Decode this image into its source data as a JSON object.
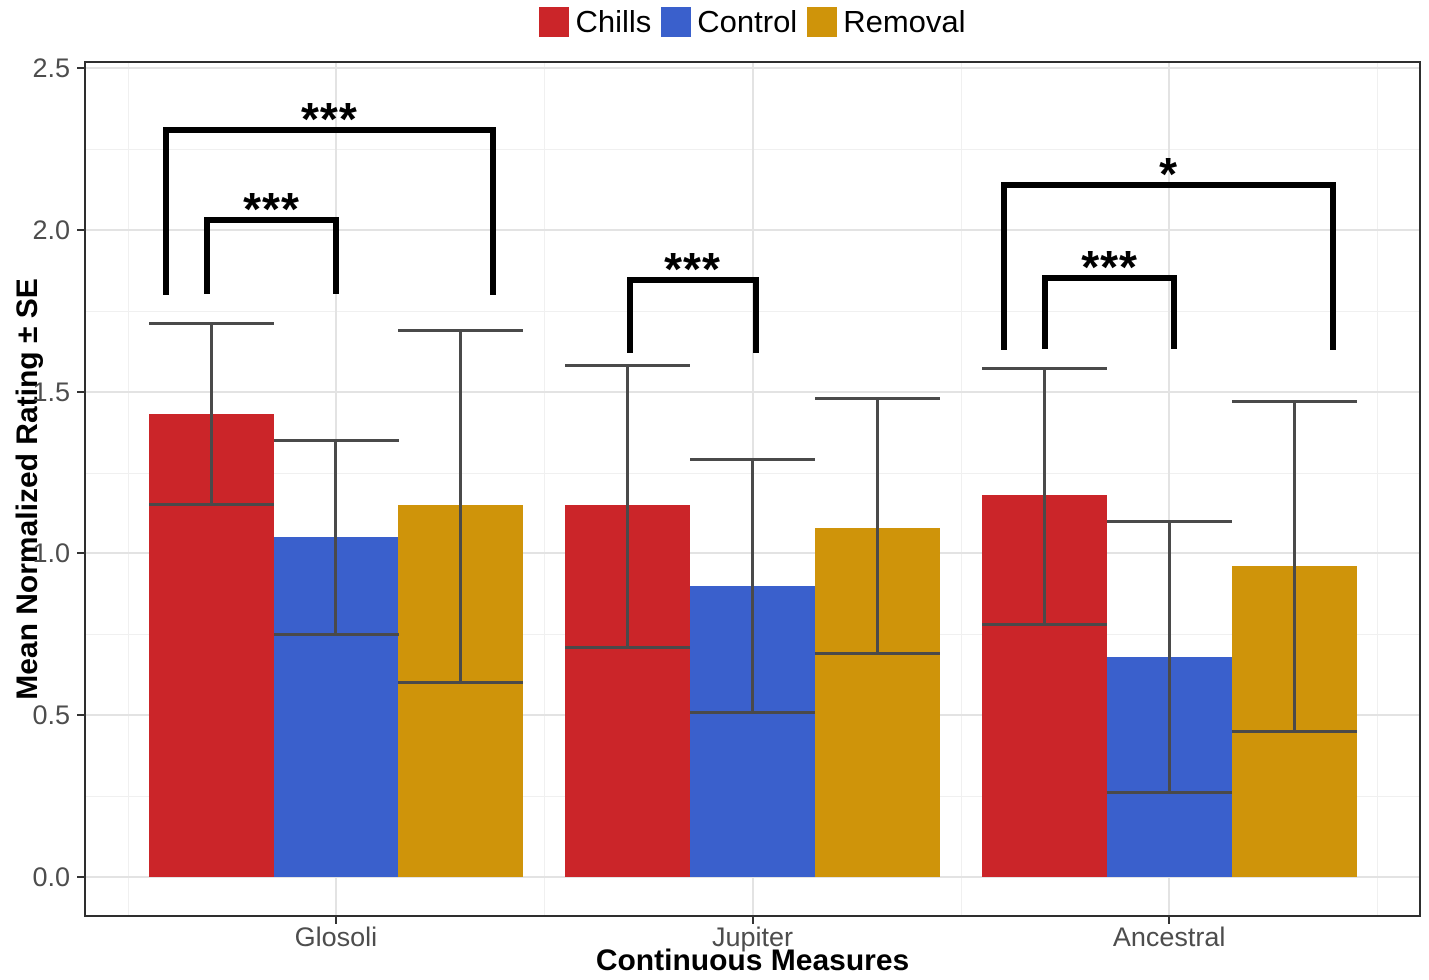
{
  "chart_data": {
    "type": "bar",
    "title": "",
    "xlabel": "Continuous Measures",
    "ylabel": "Mean Normalized Rating ± SE",
    "categories": [
      "Glosoli",
      "Jupiter",
      "Ancestral"
    ],
    "series": [
      {
        "name": "Chills",
        "color": "#CB2529",
        "values": [
          1.43,
          1.15,
          1.18
        ],
        "se_lower": [
          1.15,
          0.71,
          0.78
        ],
        "se_upper": [
          1.71,
          1.58,
          1.57
        ]
      },
      {
        "name": "Control",
        "color": "#3A60CC",
        "values": [
          1.05,
          0.9,
          0.68
        ],
        "se_lower": [
          0.75,
          0.51,
          0.26
        ],
        "se_upper": [
          1.35,
          1.29,
          1.1
        ]
      },
      {
        "name": "Removal",
        "color": "#CF940A",
        "values": [
          1.15,
          1.08,
          0.96
        ],
        "se_lower": [
          0.6,
          0.69,
          0.45
        ],
        "se_upper": [
          1.69,
          1.48,
          1.47
        ]
      }
    ],
    "ylim": [
      0,
      2.5
    ],
    "yticks": [
      0.0,
      0.5,
      1.0,
      1.5,
      2.0,
      2.5
    ],
    "ytick_labels": [
      "0.0",
      "0.5",
      "1.0",
      "1.5",
      "2.0",
      "2.5"
    ],
    "yminor": [
      0.25,
      0.75,
      1.25,
      1.75,
      2.25
    ],
    "grid": {
      "major": true,
      "minor": true
    },
    "legend_position": "top",
    "error_bar_color": "#4A4A4A",
    "gridline_major_color": "#E3E3E3",
    "gridline_minor_color": "#F0F0F0",
    "significance": [
      {
        "category": "Glosoli",
        "from": "Chills",
        "to": "Control",
        "label": "***",
        "top": 2.03,
        "legs_to": 1.8,
        "extend": [
          -4,
          0
        ]
      },
      {
        "category": "Glosoli",
        "from": "Chills",
        "to": "Removal",
        "label": "***",
        "top": 2.31,
        "legs_to": 1.8,
        "extend": [
          -45,
          32
        ]
      },
      {
        "category": "Jupiter",
        "from": "Chills",
        "to": "Control",
        "label": "***",
        "top": 1.845,
        "legs_to": 1.62,
        "extend": [
          2,
          3
        ]
      },
      {
        "category": "Ancestral",
        "from": "Chills",
        "to": "Control",
        "label": "***",
        "top": 1.85,
        "legs_to": 1.63,
        "extend": [
          1,
          5
        ]
      },
      {
        "category": "Ancestral",
        "from": "Chills",
        "to": "Removal",
        "label": "*",
        "top": 2.14,
        "legs_to": 1.63,
        "extend": [
          -40,
          39
        ]
      }
    ]
  }
}
